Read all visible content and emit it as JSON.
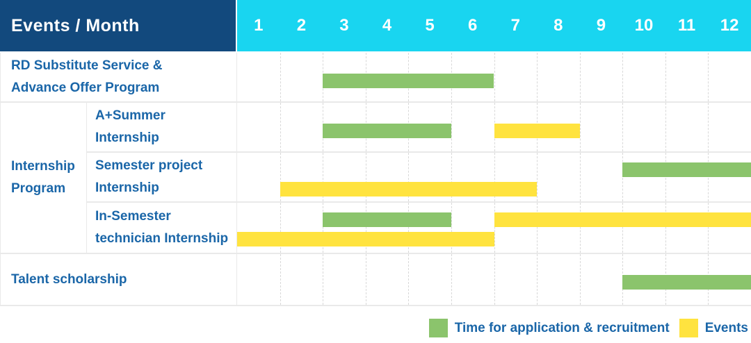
{
  "colors": {
    "header_bg": "#12497D",
    "months_bg": "#19D5F0",
    "green": "#8BC46C",
    "yellow": "#FFE33F",
    "text_blue": "#1A66A8",
    "grid": "#E9E9E9",
    "dash": "#D8D8D8"
  },
  "chart_data": {
    "type": "gantt",
    "title": "Events / Month",
    "months": [
      "1",
      "2",
      "3",
      "4",
      "5",
      "6",
      "7",
      "8",
      "9",
      "10",
      "11",
      "12"
    ],
    "rows": [
      {
        "group": null,
        "label": "RD Substitute Service & Advance Offer Program",
        "label_lines": [
          "RD Substitute Service &",
          "Advance Offer Program"
        ],
        "bars": [
          {
            "kind": "application",
            "start": 3,
            "end": 6,
            "lane": "single"
          }
        ]
      },
      {
        "group": "Internship Program",
        "label": "A+Summer Internship",
        "label_lines": [
          "A+Summer",
          "Internship"
        ],
        "bars": [
          {
            "kind": "application",
            "start": 3,
            "end": 5,
            "lane": "single"
          },
          {
            "kind": "event",
            "start": 7,
            "end": 8,
            "lane": "single"
          }
        ]
      },
      {
        "group": "Internship Program",
        "label": "Semester project Internship",
        "label_lines": [
          "Semester project",
          "Internship"
        ],
        "bars": [
          {
            "kind": "application",
            "start": 10,
            "end": 12,
            "lane": "top"
          },
          {
            "kind": "event",
            "start": 2,
            "end": 7,
            "lane": "bottom"
          }
        ]
      },
      {
        "group": "Internship Program",
        "label": "In-Semester technician Internship",
        "label_lines": [
          "In-Semester",
          "technician Internship"
        ],
        "bars": [
          {
            "kind": "application",
            "start": 3,
            "end": 5,
            "lane": "top"
          },
          {
            "kind": "event",
            "start": 7,
            "end": 12,
            "lane": "top"
          },
          {
            "kind": "event",
            "start": 1,
            "end": 6,
            "lane": "bottom"
          }
        ]
      },
      {
        "group": null,
        "label": "Talent scholarship",
        "label_lines": [
          "Talent scholarship"
        ],
        "bars": [
          {
            "kind": "application",
            "start": 10,
            "end": 12,
            "lane": "single"
          }
        ]
      }
    ],
    "group_label": "Internship Program",
    "group_label_lines": [
      "Internship",
      "Program"
    ],
    "legend": [
      {
        "kind": "application",
        "label": "Time for application & recruitment"
      },
      {
        "kind": "event",
        "label": "Events"
      }
    ],
    "layout": {
      "grid": "dashed-vertical-month-lines",
      "legend_position": "bottom-right"
    }
  }
}
